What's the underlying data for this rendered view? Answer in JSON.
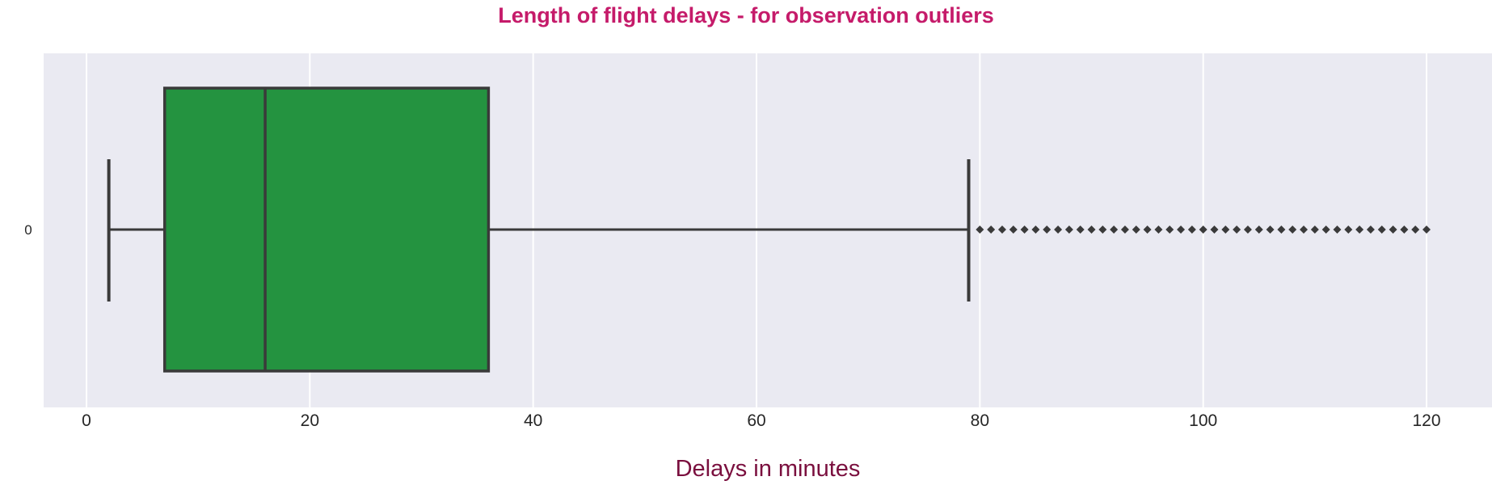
{
  "chart_data": {
    "type": "box",
    "orientation": "horizontal",
    "title": "Length of flight delays - for observation outliers",
    "xlabel": "Delays in minutes",
    "ylabel": "",
    "xlim": [
      -4,
      120
    ],
    "xticks": [
      0,
      20,
      40,
      60,
      80,
      100,
      120
    ],
    "grid": true,
    "categories": [
      "0"
    ],
    "box": {
      "whisker_low": 2,
      "q1": 7,
      "median": 16,
      "q3": 36,
      "whisker_high": 79
    },
    "outliers": [
      80,
      81,
      82,
      83,
      84,
      85,
      86,
      87,
      88,
      89,
      90,
      91,
      92,
      93,
      94,
      95,
      96,
      97,
      98,
      99,
      100,
      101,
      102,
      103,
      104,
      105,
      106,
      107,
      108,
      109,
      110,
      111,
      112,
      113,
      114,
      115,
      116,
      117,
      118,
      119,
      120
    ]
  },
  "colors": {
    "title": "#c51b6a",
    "xlabel": "#7a0f3e",
    "box_fill": "#249340",
    "line": "#3a3a3a",
    "plot_background": "#eaeaf2",
    "grid": "#ffffff"
  }
}
